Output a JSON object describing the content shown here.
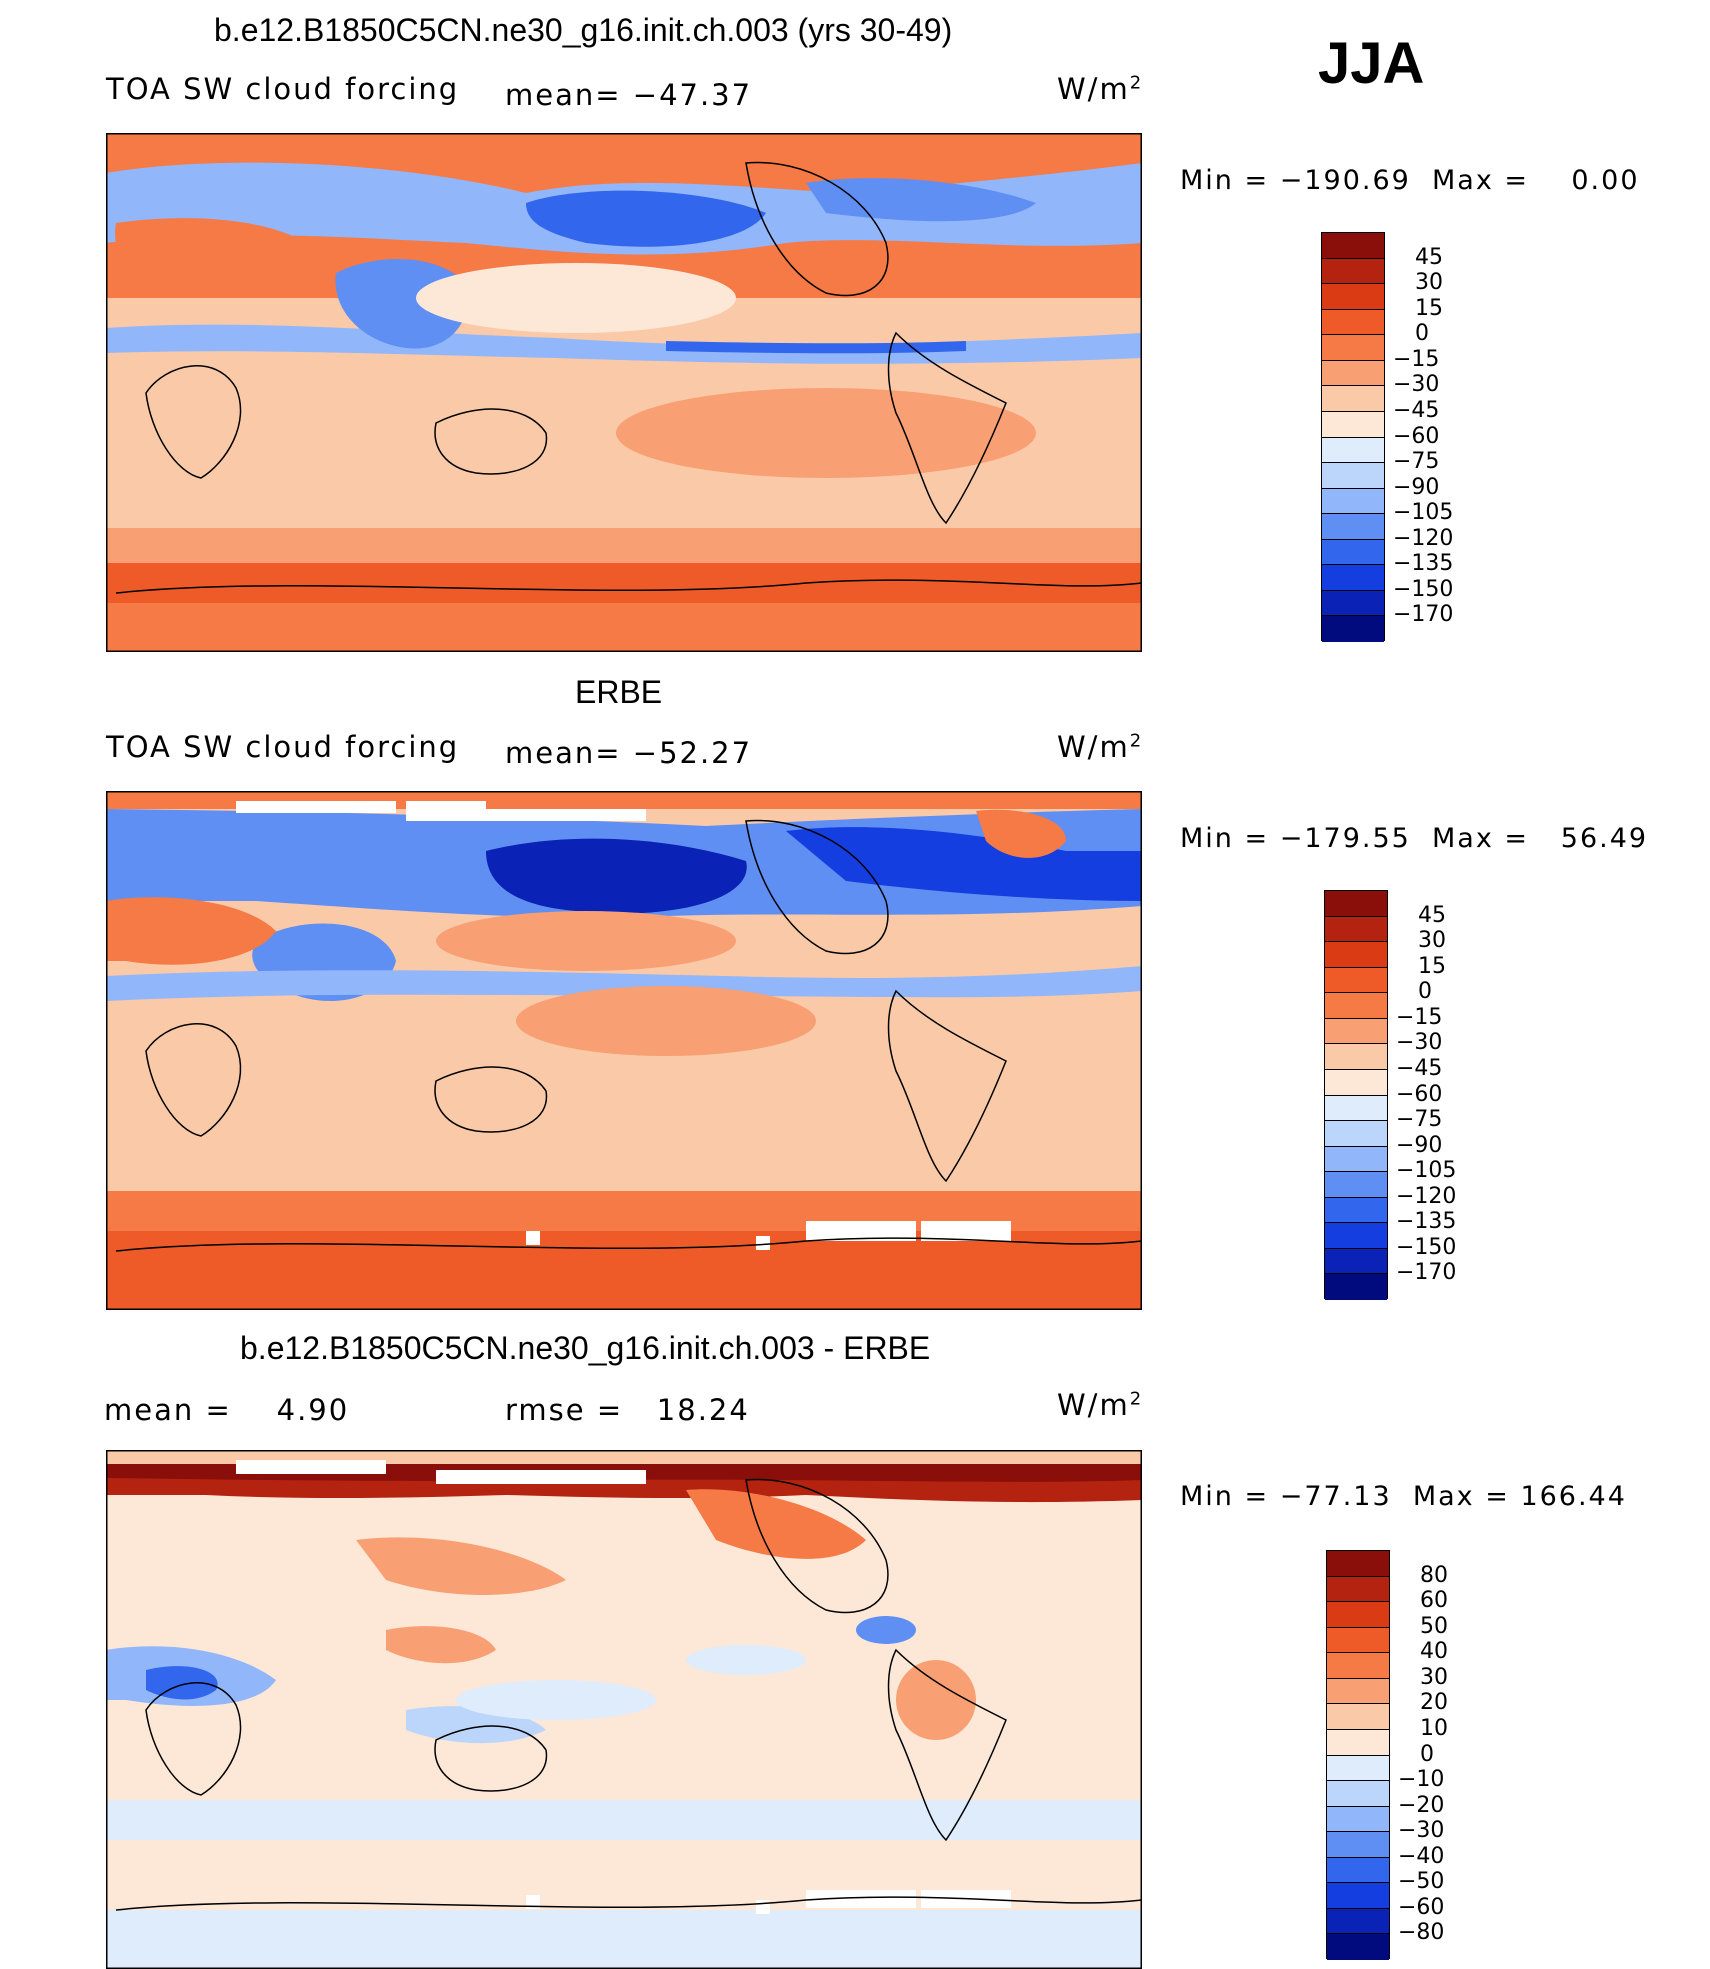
{
  "season": "JJA",
  "units": "W/m",
  "units_sup": "2",
  "colors": {
    "pos3": "#8a0e0a",
    "pos2": "#b32310",
    "pos1": "#da3a14",
    "pos0": "#ee5a28",
    "n0": "#f57a45",
    "n1": "#f89f73",
    "n2": "#facaa8",
    "n3": "#fde8d8",
    "n4": "#deecfb",
    "n5": "#bcd6fb",
    "n6": "#91b6f9",
    "n7": "#5f8ff2",
    "n8": "#3166ed",
    "n9": "#143ee0",
    "n10": "#0a22b6",
    "n11": "#020b7e"
  },
  "panels": [
    {
      "title": "b.e12.B1850C5CN.ne30_g16.init.ch.003 (yrs 30-49)",
      "left_label": "TOA SW cloud forcing",
      "mean_label": "mean=",
      "mean_value": "−47.37",
      "min_label": "Min",
      "min_value": "−190.69",
      "max_label": "Max",
      "max_value": "0.00",
      "colorbar_labels": [
        "45",
        "30",
        "15",
        "0",
        "−15",
        "−30",
        "−45",
        "−60",
        "−75",
        "−90",
        "−105",
        "−120",
        "−135",
        "−150",
        "−170"
      ]
    },
    {
      "title": "ERBE",
      "left_label": "TOA SW cloud forcing",
      "mean_label": "mean=",
      "mean_value": "−52.27",
      "min_label": "Min",
      "min_value": "−179.55",
      "max_label": "Max",
      "max_value": "56.49",
      "colorbar_labels": [
        "45",
        "30",
        "15",
        "0",
        "−15",
        "−30",
        "−45",
        "−60",
        "−75",
        "−90",
        "−105",
        "−120",
        "−135",
        "−150",
        "−170"
      ]
    },
    {
      "title": "b.e12.B1850C5CN.ne30_g16.init.ch.003 - ERBE",
      "left_label": "mean =",
      "mean_value": "4.90",
      "rmse_label": "rmse =",
      "rmse_value": "18.24",
      "min_label": "Min",
      "min_value": "−77.13",
      "max_label": "Max",
      "max_value": "166.44",
      "colorbar_labels": [
        "80",
        "60",
        "50",
        "40",
        "30",
        "20",
        "10",
        "0",
        "−10",
        "−20",
        "−30",
        "−40",
        "−50",
        "−60",
        "−80"
      ]
    }
  ],
  "chart_data": [
    {
      "type": "heatmap",
      "title": "b.e12.B1850C5CN.ne30_g16.init.ch.003 (yrs 30-49)",
      "variable": "TOA SW cloud forcing",
      "units": "W/m2",
      "season": "JJA",
      "mean": -47.37,
      "min": -190.69,
      "max": 0.0,
      "contour_levels": [
        -170,
        -150,
        -135,
        -120,
        -105,
        -90,
        -75,
        -60,
        -45,
        -30,
        -15,
        0,
        15,
        30,
        45
      ]
    },
    {
      "type": "heatmap",
      "title": "ERBE",
      "variable": "TOA SW cloud forcing",
      "units": "W/m2",
      "season": "JJA",
      "mean": -52.27,
      "min": -179.55,
      "max": 56.49,
      "contour_levels": [
        -170,
        -150,
        -135,
        -120,
        -105,
        -90,
        -75,
        -60,
        -45,
        -30,
        -15,
        0,
        15,
        30,
        45
      ]
    },
    {
      "type": "heatmap",
      "title": "b.e12.B1850C5CN.ne30_g16.init.ch.003 - ERBE",
      "units": "W/m2",
      "season": "JJA",
      "mean": 4.9,
      "rmse": 18.24,
      "min": -77.13,
      "max": 166.44,
      "contour_levels": [
        -80,
        -60,
        -50,
        -40,
        -30,
        -20,
        -10,
        0,
        10,
        20,
        30,
        40,
        50,
        60,
        80
      ]
    }
  ]
}
